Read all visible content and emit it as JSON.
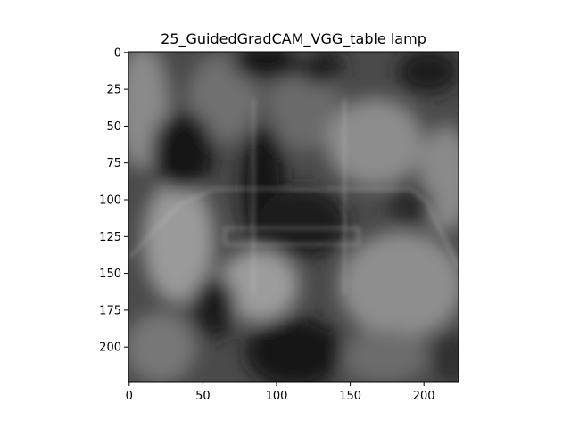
{
  "chart_data": {
    "type": "heatmap",
    "title": "25_GuidedGradCAM_VGG_table lamp",
    "xlabel": "",
    "ylabel": "",
    "xlim": [
      -0.5,
      223.5
    ],
    "ylim": [
      223.5,
      -0.5
    ],
    "x_ticks": [
      0,
      50,
      100,
      150,
      200
    ],
    "y_ticks": [
      0,
      25,
      50,
      75,
      100,
      125,
      150,
      175,
      200
    ],
    "x_tick_labels": [
      "0",
      "50",
      "100",
      "150",
      "200"
    ],
    "y_tick_labels": [
      "0",
      "25",
      "50",
      "75",
      "100",
      "125",
      "150",
      "175",
      "200"
    ],
    "grid": false,
    "colormap": "grayscale saliency overlay",
    "image_size": [
      224,
      224
    ]
  }
}
